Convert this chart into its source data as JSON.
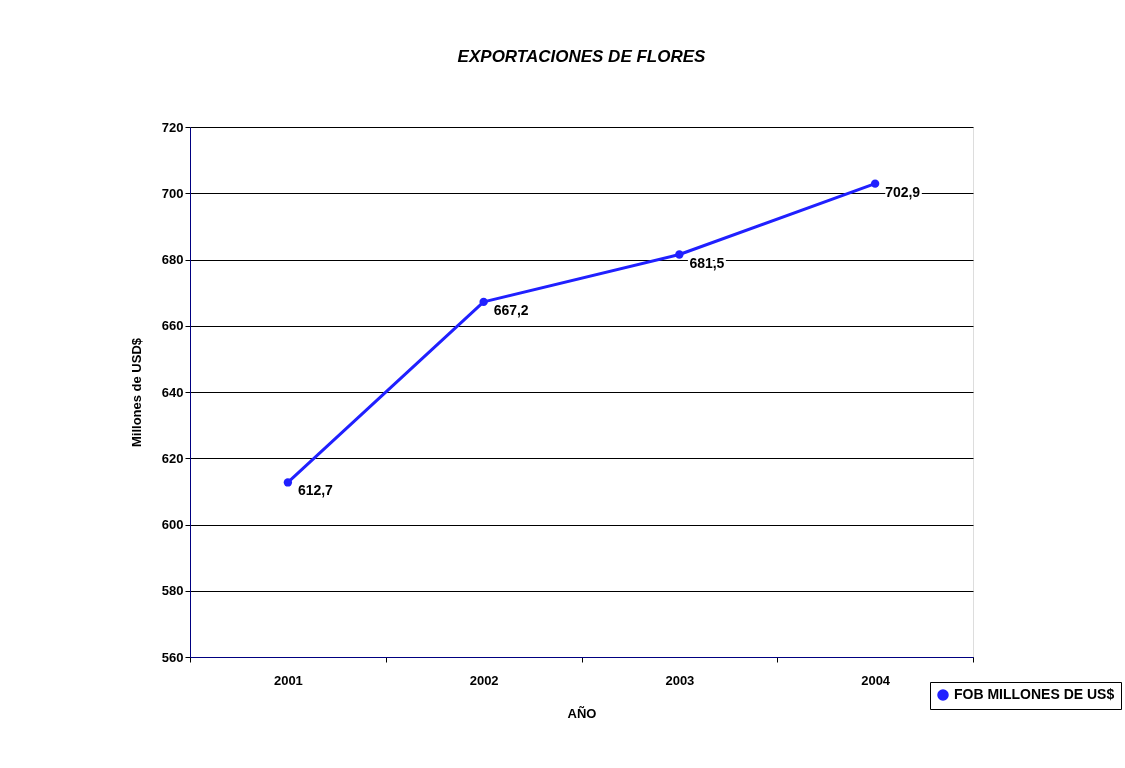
{
  "chart_data": {
    "type": "line",
    "title": "EXPORTACIONES DE FLORES",
    "xlabel": "AÑO",
    "ylabel": "Millones de USD$",
    "categories": [
      "2001",
      "2002",
      "2003",
      "2004"
    ],
    "series": [
      {
        "name": "FOB MILLONES DE US$",
        "color": "#2020ff",
        "values": [
          612.7,
          667.2,
          681.5,
          702.9
        ],
        "value_labels": [
          "612,7",
          "667,2",
          "681,5",
          "702,9"
        ]
      }
    ],
    "ylim": [
      560,
      720
    ],
    "yticks": [
      560,
      580,
      600,
      620,
      640,
      660,
      680,
      700,
      720
    ],
    "grid": "y",
    "legend": "bottom right",
    "marker": "circle"
  }
}
